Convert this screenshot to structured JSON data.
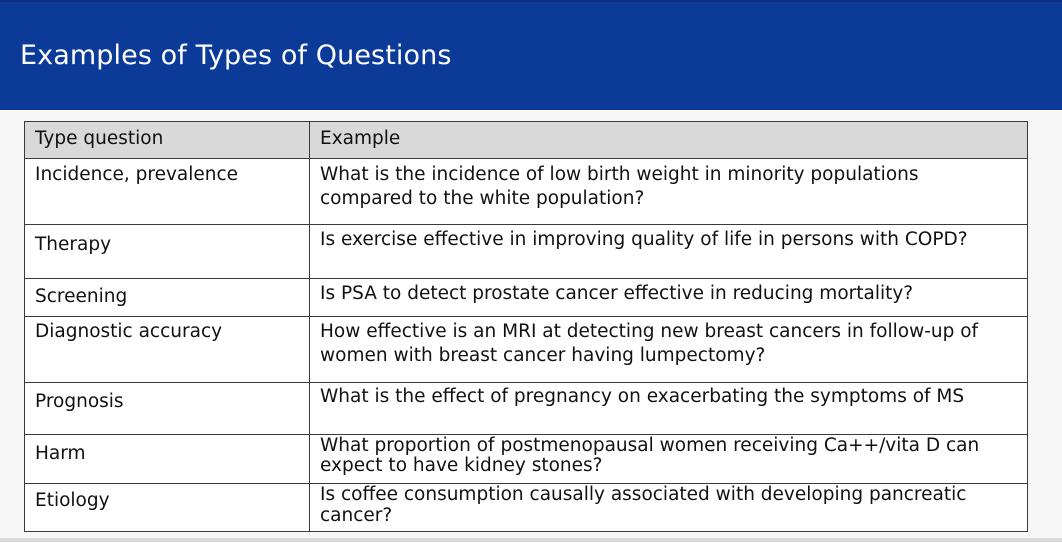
{
  "slide": {
    "title": "Examples of Types of Questions",
    "colors": {
      "title_bar": "#0b3a98",
      "title_text": "#ffffff",
      "header_row": "#d9d9d9",
      "border": "#3a3a3a"
    }
  },
  "table": {
    "headers": [
      "Type question",
      "Example"
    ],
    "rows": [
      {
        "type": "Incidence, prevalence",
        "example": "What is the incidence of low birth weight in minority populations compared to the white population?"
      },
      {
        "type": "Therapy",
        "example": "Is exercise effective in improving quality of life in persons with COPD?"
      },
      {
        "type": "Screening",
        "example": "Is PSA to detect prostate cancer effective in reducing mortality?"
      },
      {
        "type": "Diagnostic accuracy",
        "example": "How effective is an MRI at detecting new breast cancers in follow-up of women with breast cancer having lumpectomy?"
      },
      {
        "type": "Prognosis",
        "example": "What is the effect of pregnancy on exacerbating the symptoms of MS"
      },
      {
        "type": "Harm",
        "example": "What proportion of postmenopausal women receiving Ca++/vita D can expect to have kidney stones?"
      },
      {
        "type": "Etiology",
        "example": "Is coffee consumption causally associated with developing pancreatic cancer?"
      }
    ]
  }
}
